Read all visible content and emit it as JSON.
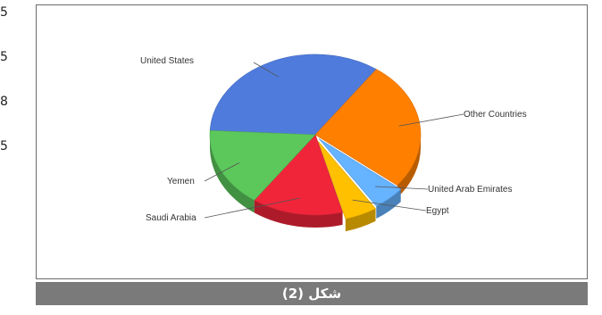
{
  "margin_digits": [
    "5",
    "5",
    "8",
    "5"
  ],
  "caption": "(2) شكل",
  "chart_data": {
    "type": "pie",
    "style": "3d-exploded",
    "title": "",
    "categories": [
      "United States",
      "Other Countries",
      "United Arab Emirates",
      "Egypt",
      "Saudi Arabia",
      "Yemen"
    ],
    "values": [
      34,
      26,
      5,
      5,
      14,
      16
    ],
    "colors": [
      "#4f7bdc",
      "#ff8000",
      "#66b3ff",
      "#ffc000",
      "#f0253a",
      "#5cc85c"
    ],
    "legend": "none"
  }
}
